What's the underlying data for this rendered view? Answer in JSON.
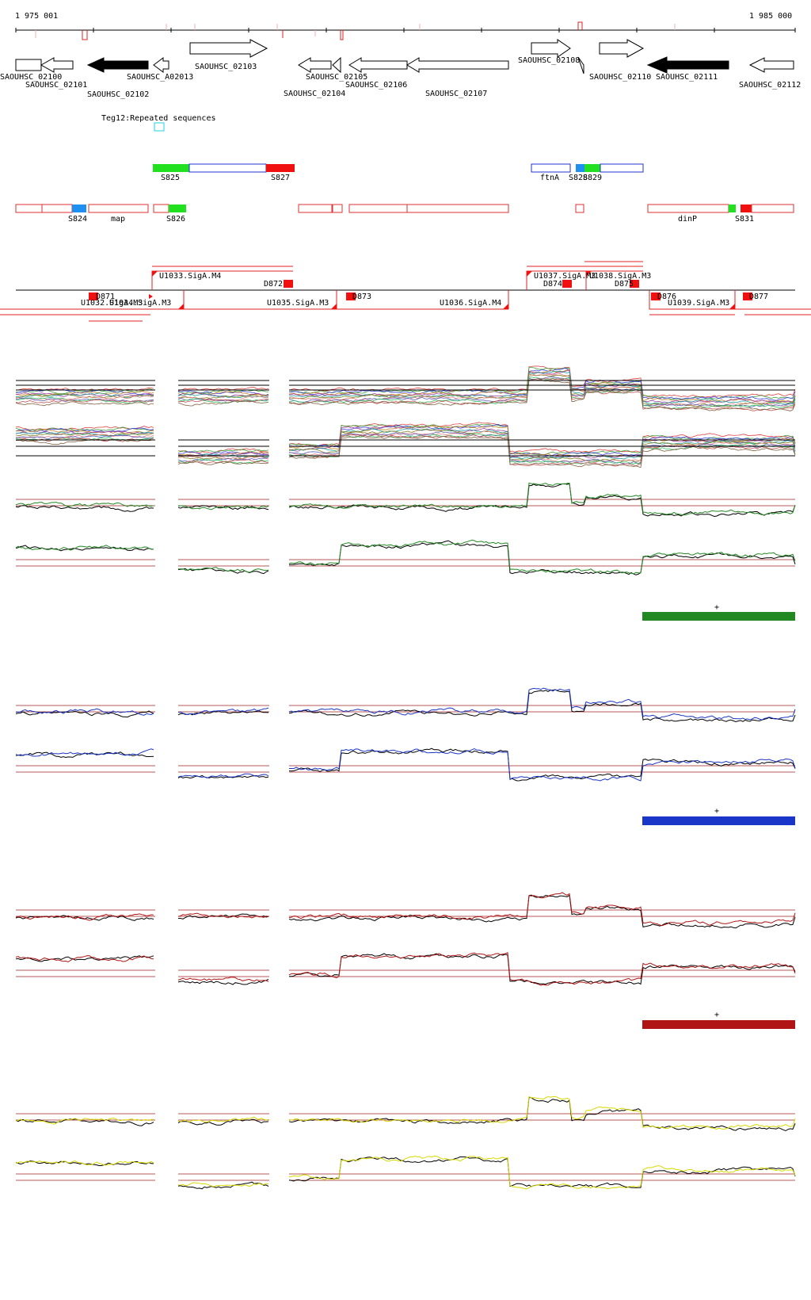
{
  "coordinates": {
    "start": "1 975 001",
    "end": "1 985 000"
  },
  "genes": [
    {
      "name": "SAOUHSC_02100",
      "fill": "white"
    },
    {
      "name": "SAOUHSC_02101",
      "fill": "white"
    },
    {
      "name": "SAOUHSC_02102",
      "fill": "black"
    },
    {
      "name": "SAOUHSC_A02013",
      "fill": "white"
    },
    {
      "name": "SAOUHSC_02103",
      "fill": "white"
    },
    {
      "name": "SAOUHSC_02104",
      "fill": "white"
    },
    {
      "name": "SAOUHSC_02105",
      "fill": "white"
    },
    {
      "name": "SAOUHSC_02106",
      "fill": "white"
    },
    {
      "name": "SAOUHSC_02107",
      "fill": "white"
    },
    {
      "name": "SAOUHSC_02108",
      "fill": "white"
    },
    {
      "name": "SAOUHSC_02110",
      "fill": "white"
    },
    {
      "name": "SAOUHSC_02111",
      "fill": "black"
    },
    {
      "name": "SAOUHSC_02112",
      "fill": "white"
    }
  ],
  "repeat_region": {
    "label": "Teg12:Repeated sequences"
  },
  "segments_upper": [
    "S825",
    "S827",
    "ftnA",
    "S828",
    "S829"
  ],
  "segments_lower": [
    "S824",
    "map",
    "S826",
    "dinP",
    "S831"
  ],
  "features": [
    "U1033.SigA.M4",
    "D872",
    "U1037.SigA.M3",
    "D874",
    "U1038.SigA.M3",
    "D875",
    "D871",
    "U1032.SigA.M3",
    "U1034.SigA.M3",
    "U1035.SigA.M3",
    "D873",
    "U1036.SigA.M4",
    "D876",
    "U1039.SigA.M3",
    "D877"
  ],
  "condition_markers": [
    "+",
    "+",
    "+"
  ],
  "colors": {
    "multi": "multicolor",
    "green": "#228822",
    "blue": "#1a36c8",
    "red": "#b01414",
    "yellow": "#d8d800",
    "gene_outline": "#000000",
    "segment_outline_red": "#e03030",
    "segment_outline_blue": "#2030d0"
  }
}
